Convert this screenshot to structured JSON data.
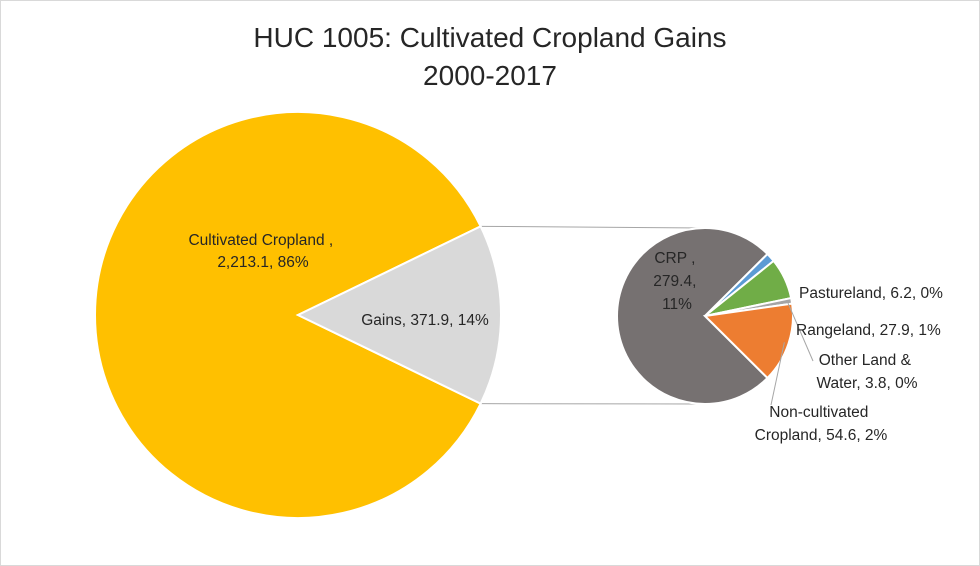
{
  "chart_data": {
    "type": "pie",
    "title_line1": "HUC 1005: Cultivated Cropland Gains",
    "title_line2": "2000-2017",
    "main_pie": {
      "slices": [
        {
          "label_line1": "Cultivated Cropland ,",
          "label_line2": "2,213.1, 86%",
          "value": 2213.1,
          "percent": 86,
          "color": "#FFC000"
        },
        {
          "label_line1": "Gains, 371.9, 14%",
          "value": 371.9,
          "percent": 14,
          "color": "#D9D9D9"
        }
      ]
    },
    "secondary_pie": {
      "slices": [
        {
          "label_line1": "CRP ,",
          "label_line2": "279.4,",
          "label_line3": "11%",
          "value": 279.4,
          "percent": 11,
          "color": "#767171"
        },
        {
          "label_line1": "Pastureland, 6.2, 0%",
          "value": 6.2,
          "percent": 0,
          "color": "#5B9BD5"
        },
        {
          "label_line1": "Rangeland, 27.9, 1%",
          "value": 27.9,
          "percent": 1,
          "color": "#70AD47"
        },
        {
          "label_line1": "Other Land &",
          "label_line2": "Water, 3.8, 0%",
          "value": 3.8,
          "percent": 0,
          "color": "#A5A5A5"
        },
        {
          "label_line1": "Non-cultivated",
          "label_line2": "Cropland, 54.6, 2%",
          "value": 54.6,
          "percent": 2,
          "color": "#ED7D31"
        }
      ]
    }
  }
}
